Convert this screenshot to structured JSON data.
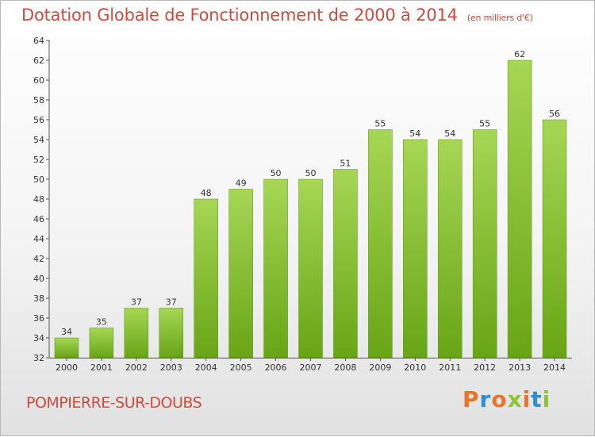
{
  "header": {
    "title": "Dotation Globale de Fonctionnement de 2000 à 2014",
    "subtitle": "(en milliers d'€)"
  },
  "footer": {
    "commune": "POMPIERRE-SUR-DOUBS",
    "logo_text": "Proxiti"
  },
  "colors": {
    "title": "#d24a3c",
    "bar_top": "#a6d655",
    "bar_bottom": "#68a516",
    "logo_letters": [
      "#e8742a",
      "#2b8fd6",
      "#e8742a",
      "#8fc43a",
      "#e8742a",
      "#2b8fd6",
      "#8fc43a"
    ]
  },
  "chart_data": {
    "type": "bar",
    "categories": [
      "2000",
      "2001",
      "2002",
      "2003",
      "2004",
      "2005",
      "2006",
      "2007",
      "2008",
      "2009",
      "2010",
      "2011",
      "2012",
      "2013",
      "2014"
    ],
    "values": [
      34,
      35,
      37,
      37,
      48,
      49,
      50,
      50,
      51,
      55,
      54,
      54,
      55,
      62,
      56
    ],
    "ylim": [
      32,
      64
    ],
    "yticks": [
      32,
      34,
      36,
      38,
      40,
      42,
      44,
      46,
      48,
      50,
      52,
      54,
      56,
      58,
      60,
      62,
      64
    ],
    "grid": false,
    "xlabel": "",
    "ylabel": ""
  }
}
